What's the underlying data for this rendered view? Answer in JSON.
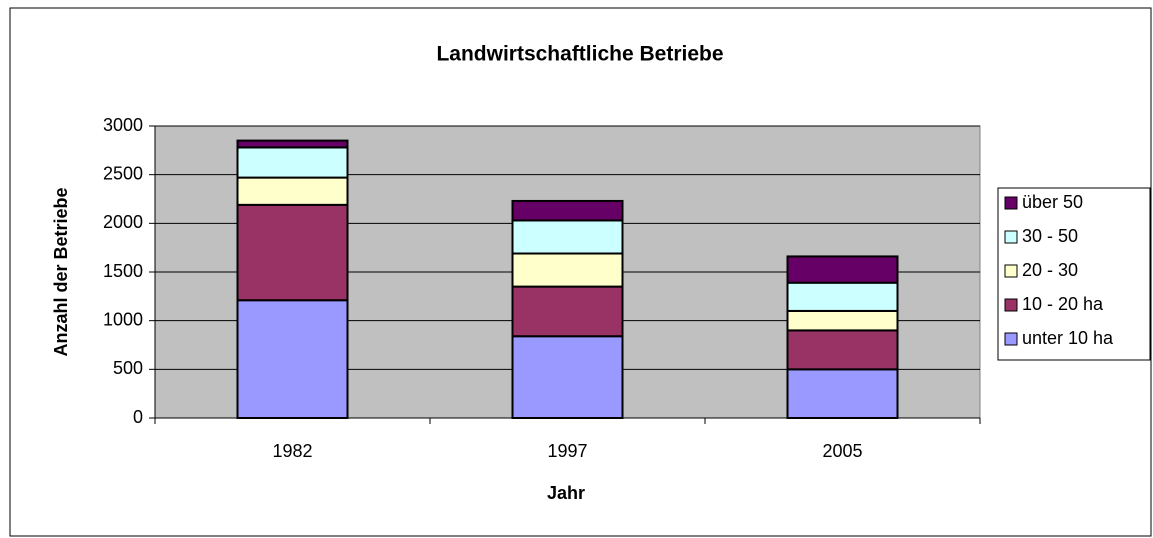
{
  "chart_data": {
    "type": "stacked_bar",
    "title": "Landwirtschaftliche Betriebe",
    "x_label": "Jahr",
    "y_label": "Anzahl der Betriebe",
    "categories": [
      "1982",
      "1997",
      "2005"
    ],
    "series": [
      {
        "name": "unter 10 ha",
        "color": "#9999ff",
        "values": [
          1210,
          840,
          500
        ]
      },
      {
        "name": "10 - 20 ha",
        "color": "#993366",
        "values": [
          980,
          510,
          400
        ]
      },
      {
        "name": "20 - 30",
        "color": "#ffffcc",
        "values": [
          280,
          340,
          200
        ]
      },
      {
        "name": "30 - 50",
        "color": "#ccffff",
        "values": [
          310,
          340,
          290
        ]
      },
      {
        "name": "über 50",
        "color": "#660066",
        "values": [
          70,
          200,
          270
        ]
      }
    ],
    "ylim": [
      0,
      3000
    ],
    "yticks": [
      0,
      500,
      1000,
      1500,
      2000,
      2500,
      3000
    ],
    "grid": true,
    "legend": "right",
    "plot_background": "#c0c0c0"
  }
}
